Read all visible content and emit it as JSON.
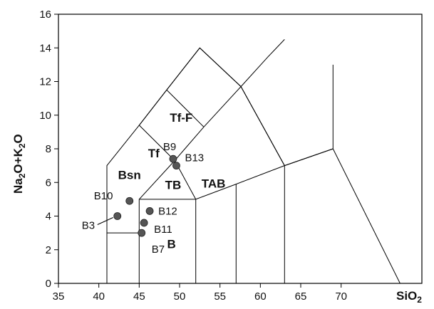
{
  "chart_data": {
    "type": "scatter",
    "title": "",
    "xlabel_main": "SiO",
    "xlabel_sub": "2",
    "ylabel_parts": [
      {
        "t": "Na",
        "sub": false
      },
      {
        "t": "2",
        "sub": true
      },
      {
        "t": "O+K",
        "sub": false
      },
      {
        "t": "2",
        "sub": true
      },
      {
        "t": "O",
        "sub": false
      }
    ],
    "xlim": [
      35,
      80
    ],
    "ylim": [
      0,
      16
    ],
    "x_ticks": [
      "35",
      "40",
      "45",
      "50",
      "55",
      "60",
      "65",
      "70"
    ],
    "y_ticks": [
      "0",
      "2",
      "4",
      "6",
      "8",
      "10",
      "12",
      "14",
      "16"
    ],
    "grid": false,
    "points": [
      {
        "label": "B3",
        "x": 42.3,
        "y": 4.0
      },
      {
        "label": "B10",
        "x": 43.8,
        "y": 4.9
      },
      {
        "label": "B12",
        "x": 46.3,
        "y": 4.3
      },
      {
        "label": "B11",
        "x": 45.6,
        "y": 3.6
      },
      {
        "label": "B7",
        "x": 45.3,
        "y": 3.0
      },
      {
        "label": "B9",
        "x": 49.2,
        "y": 7.4
      },
      {
        "label": "B13",
        "x": 49.6,
        "y": 7.0
      }
    ],
    "fields": [
      {
        "label": "Tf-F",
        "x": 50.2,
        "y": 9.6
      },
      {
        "label": "Tf",
        "x": 46.8,
        "y": 7.5
      },
      {
        "label": "Bsn",
        "x": 43.8,
        "y": 6.2
      },
      {
        "label": "TB",
        "x": 49.2,
        "y": 5.6
      },
      {
        "label": "TAB",
        "x": 54.2,
        "y": 5.7
      },
      {
        "label": "B",
        "x": 49.0,
        "y": 2.1
      }
    ],
    "boundaries": [
      [
        [
          41,
          0
        ],
        [
          41,
          7
        ],
        [
          45,
          9.4
        ],
        [
          48.4,
          11.5
        ],
        [
          52.5,
          14
        ],
        [
          57.6,
          11.7
        ],
        [
          63,
          7
        ],
        [
          69,
          8
        ],
        [
          69,
          13
        ]
      ],
      [
        [
          41,
          3
        ],
        [
          45,
          3
        ]
      ],
      [
        [
          45,
          0
        ],
        [
          45,
          5
        ],
        [
          49.4,
          7.3
        ],
        [
          53,
          9.3
        ],
        [
          57.6,
          11.7
        ],
        [
          61,
          13.5
        ],
        [
          63,
          14.5
        ]
      ],
      [
        [
          45,
          5
        ],
        [
          52,
          5
        ],
        [
          57,
          5.9
        ],
        [
          63,
          7
        ]
      ],
      [
        [
          45,
          9.4
        ],
        [
          48.4,
          11.5
        ]
      ],
      [
        [
          48.4,
          11.5
        ],
        [
          52.5,
          14
        ]
      ],
      [
        [
          49.4,
          7.3
        ],
        [
          45,
          9.4
        ]
      ],
      [
        [
          49.4,
          7.3
        ],
        [
          52,
          5
        ]
      ],
      [
        [
          52,
          0
        ],
        [
          52,
          5
        ]
      ],
      [
        [
          57,
          0
        ],
        [
          57,
          5.9
        ]
      ],
      [
        [
          63,
          0
        ],
        [
          63,
          7
        ]
      ],
      [
        [
          48.4,
          11.5
        ],
        [
          53,
          9.3
        ]
      ],
      [
        [
          52.5,
          14
        ],
        [
          57.6,
          11.7
        ]
      ],
      [
        [
          57.6,
          11.7
        ],
        [
          63,
          7
        ]
      ],
      [
        [
          63,
          7
        ],
        [
          69,
          8
        ]
      ],
      [
        [
          69,
          8
        ],
        [
          77.3,
          0
        ]
      ]
    ]
  }
}
